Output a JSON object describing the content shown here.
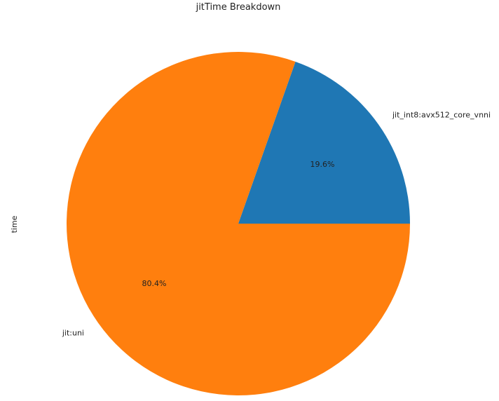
{
  "chart_data": {
    "type": "pie",
    "title": "jitTime Breakdown",
    "ylabel": "time",
    "slices": [
      {
        "label": "jit_int8:avx512_core_vnni",
        "value": 19.6,
        "pct_label": "19.6%",
        "color": "#1f77b4"
      },
      {
        "label": "jit:uni",
        "value": 80.4,
        "pct_label": "80.4%",
        "color": "#ff7f0e"
      }
    ],
    "start_angle_deg": 0,
    "direction": "counterclockwise",
    "legend": "none"
  }
}
